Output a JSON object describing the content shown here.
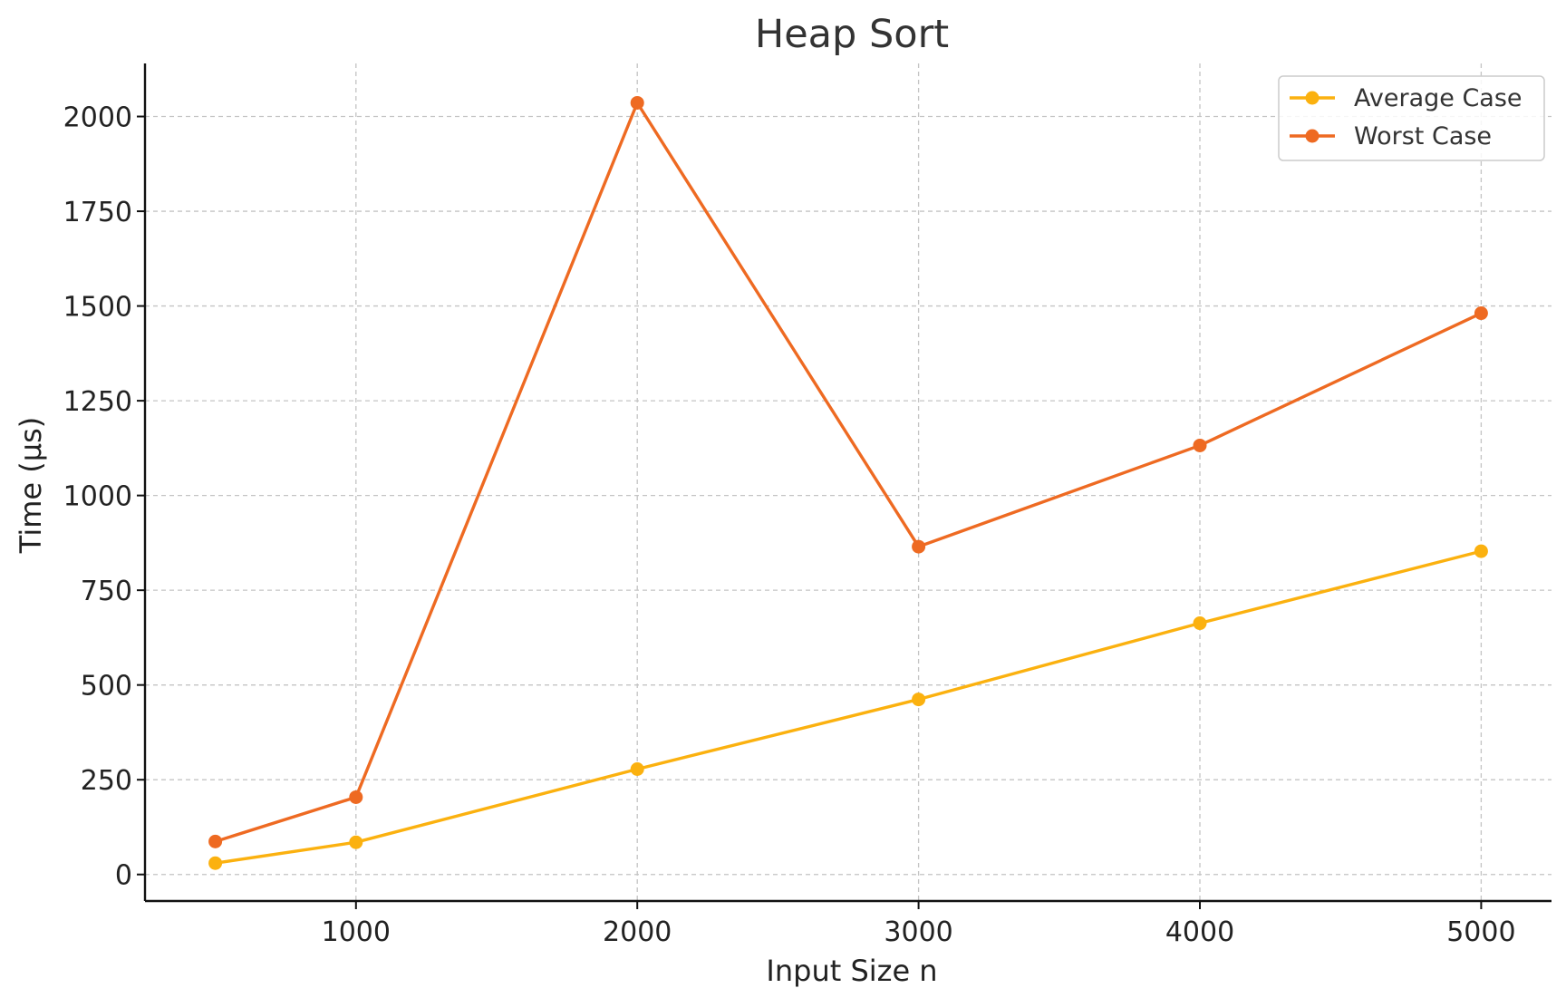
{
  "chart_data": {
    "type": "line",
    "title": "Heap Sort",
    "xlabel": "Input Size n",
    "ylabel": "Time (µs)",
    "x": [
      500,
      1000,
      2000,
      3000,
      4000,
      5000
    ],
    "x_ticks": [
      1000,
      2000,
      3000,
      4000,
      5000
    ],
    "y_ticks": [
      0,
      250,
      500,
      750,
      1000,
      1250,
      1500,
      1750,
      2000
    ],
    "xlim": [
      250,
      5250
    ],
    "ylim": [
      -70,
      2140
    ],
    "grid": true,
    "legend_position": "top-right",
    "series": [
      {
        "name": "Average Case",
        "color": "#FBB10F",
        "values": [
          30,
          85,
          278,
          462,
          663,
          853
        ]
      },
      {
        "name": "Worst Case",
        "color": "#EE6A22",
        "values": [
          87,
          204,
          2036,
          865,
          1132,
          1481
        ]
      }
    ]
  }
}
